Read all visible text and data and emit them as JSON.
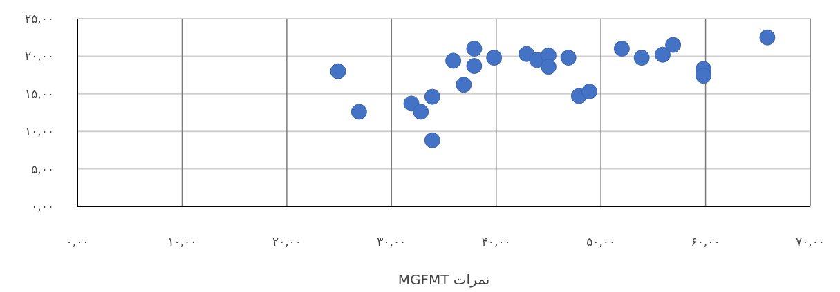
{
  "chart_data": {
    "type": "scatter",
    "xlabel": "نمرات MGFMT",
    "marker": "circle",
    "grid": true,
    "xlim": [
      0,
      70
    ],
    "ylim": [
      0,
      25
    ],
    "xticks": [
      {
        "value": 0,
        "label": "۰,۰۰"
      },
      {
        "value": 10,
        "label": "۱۰,۰۰"
      },
      {
        "value": 20,
        "label": "۲۰,۰۰"
      },
      {
        "value": 30,
        "label": "۳۰,۰۰"
      },
      {
        "value": 40,
        "label": "۴۰,۰۰"
      },
      {
        "value": 50,
        "label": "۵۰,۰۰"
      },
      {
        "value": 60,
        "label": "۶۰,۰۰"
      },
      {
        "value": 70,
        "label": "۷۰,۰۰"
      }
    ],
    "yticks": [
      {
        "value": 0,
        "label": "۰,۰۰"
      },
      {
        "value": 5,
        "label": "۵,۰۰"
      },
      {
        "value": 10,
        "label": "۱۰,۰۰"
      },
      {
        "value": 15,
        "label": "۱۵,۰۰"
      },
      {
        "value": 20,
        "label": "۲۰,۰۰"
      },
      {
        "value": 25,
        "label": "۲۵,۰۰"
      }
    ],
    "series": [
      {
        "color": "#4472c4",
        "x": [
          24.9,
          26.9,
          31.9,
          32.8,
          33.9,
          33.9,
          35.9,
          36.9,
          37.9,
          37.9,
          39.8,
          42.9,
          43.9,
          45.0,
          45.0,
          46.9,
          47.9,
          48.9,
          52.0,
          53.9,
          55.9,
          56.9,
          59.8,
          59.8,
          65.9
        ],
        "values": [
          18.0,
          12.6,
          13.7,
          12.6,
          14.6,
          8.8,
          19.4,
          16.2,
          21.0,
          18.7,
          19.8,
          20.3,
          19.5,
          20.1,
          18.6,
          19.8,
          14.7,
          15.3,
          21.0,
          19.8,
          20.2,
          21.5,
          18.3,
          17.4,
          22.5
        ]
      }
    ]
  }
}
